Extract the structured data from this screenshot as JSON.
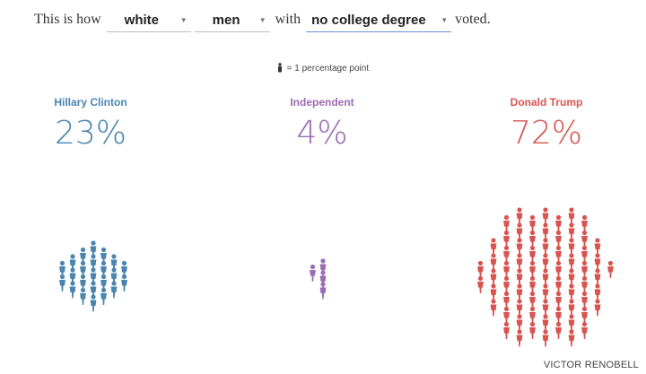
{
  "sentence": {
    "prefix": "This is how",
    "race": "white",
    "gender": "men",
    "connector": "with",
    "education": "no college degree",
    "suffix": "voted."
  },
  "legend": {
    "text": "= 1 percentage point"
  },
  "candidates": [
    {
      "name": "Hillary Clinton",
      "percent": "23%",
      "count": 23,
      "color": "#4a85b0"
    },
    {
      "name": "Independent",
      "percent": "4%",
      "count": 4,
      "color": "#9b6bb3"
    },
    {
      "name": "Donald Trump",
      "percent": "72%",
      "count": 72,
      "color": "#d9534f"
    }
  ],
  "credit": "VICTOR RENOBELL"
}
